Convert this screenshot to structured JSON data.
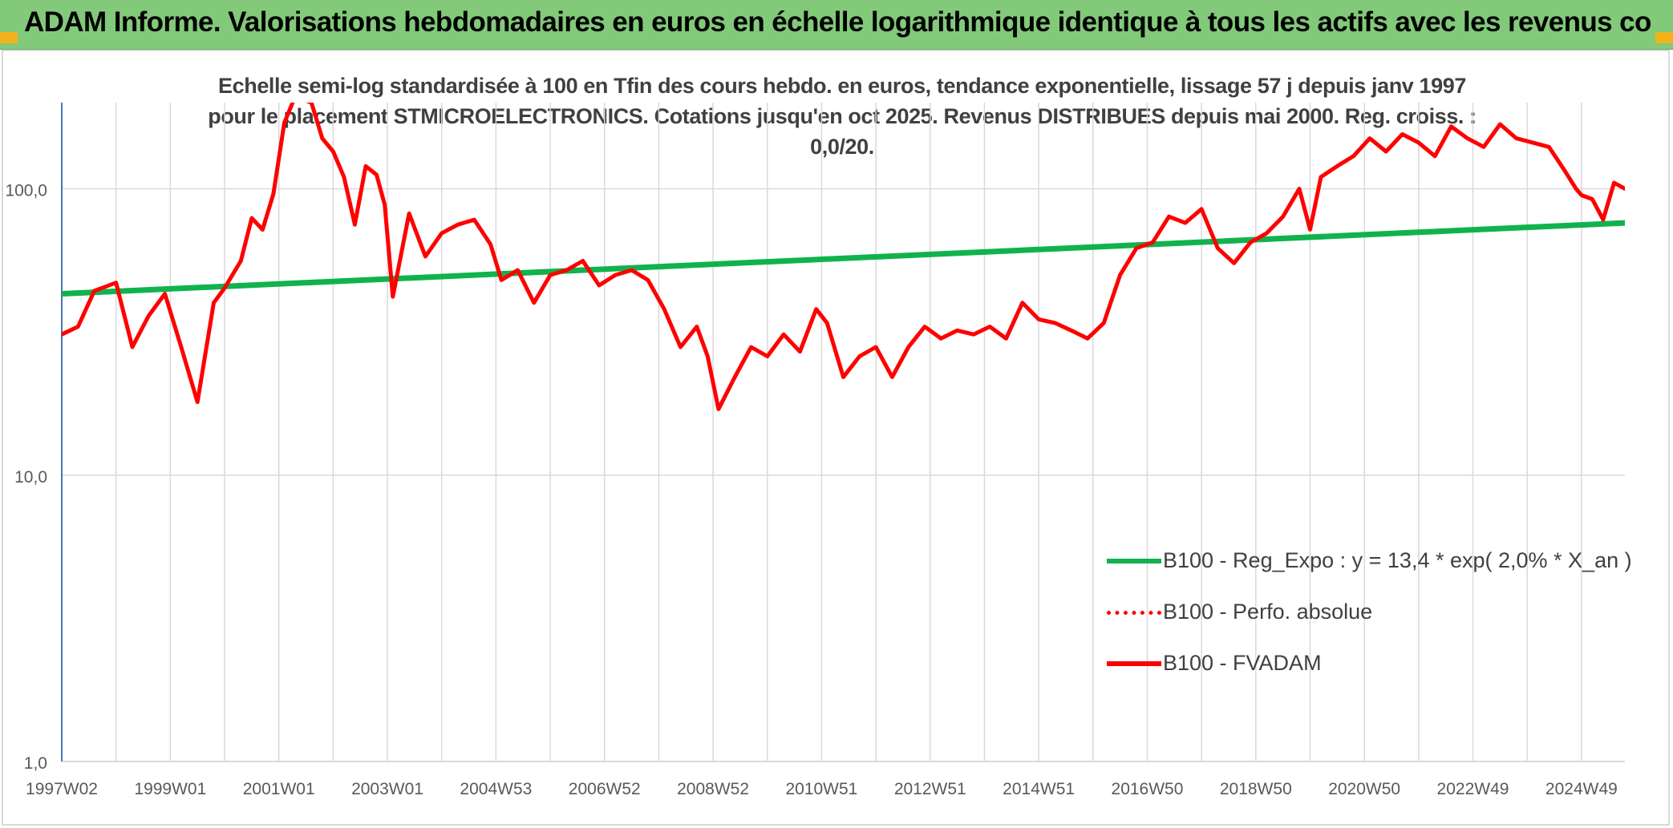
{
  "header": {
    "title": "ADAM Informe. Valorisations hebdomadaires en euros en échelle logarithmique identique à tous les actifs avec les revenus connus distribués"
  },
  "colors": {
    "banner": "#82c97a",
    "accent_corner": "#f2b21b",
    "fvadam": "#ff0000",
    "reg_expo": "#11b24e",
    "perfo": "#ff0000",
    "grid": "#d9d9d9"
  },
  "chart_data": {
    "type": "line",
    "title": "Echelle semi-log standardisée à 100 en Tfin des cours hebdo. en euros, tendance exponentielle, lissage 57 j depuis janv 1997 pour le placement STMICROELECTRONICS. Cotations jusqu'en oct 2025. Revenus DISTRIBUES depuis mai 2000. Reg. croiss. : 0,0/20.",
    "yscale": "log",
    "ylim": [
      1,
      200
    ],
    "xlim": [
      1997.0,
      2025.8
    ],
    "yticks": [
      {
        "value": 1,
        "label": "1,0"
      },
      {
        "value": 10,
        "label": "10,0"
      },
      {
        "value": 100,
        "label": "100,0"
      }
    ],
    "xticks": [
      {
        "value": 1997.0,
        "label": "1997W02"
      },
      {
        "value": 1999.0,
        "label": "1999W01"
      },
      {
        "value": 2001.0,
        "label": "2001W01"
      },
      {
        "value": 2003.0,
        "label": "2003W01"
      },
      {
        "value": 2005.0,
        "label": "2004W53"
      },
      {
        "value": 2007.0,
        "label": "2006W52"
      },
      {
        "value": 2009.0,
        "label": "2008W52"
      },
      {
        "value": 2011.0,
        "label": "2010W51"
      },
      {
        "value": 2013.0,
        "label": "2012W51"
      },
      {
        "value": 2015.0,
        "label": "2014W51"
      },
      {
        "value": 2017.0,
        "label": "2016W50"
      },
      {
        "value": 2019.0,
        "label": "2018W50"
      },
      {
        "value": 2021.0,
        "label": "2020W50"
      },
      {
        "value": 2023.0,
        "label": "2022W49"
      },
      {
        "value": 2025.0,
        "label": "2024W49"
      }
    ],
    "legend": {
      "position": "bottom-right",
      "entries": [
        {
          "name": "B100 - Reg_Expo : y = 13,4 * exp( 2,0% *  X_an )",
          "style": "solid",
          "color": "#11b24e"
        },
        {
          "name": "B100 - Perfo. absolue",
          "style": "dotted",
          "color": "#ff0000"
        },
        {
          "name": "B100 - FVADAM",
          "style": "solid",
          "color": "#ff0000"
        }
      ]
    },
    "series": [
      {
        "name": "B100 - Reg_Expo : y = 13,4 * exp( 2,0% *  X_an )",
        "color": "#11b24e",
        "x": [
          1997.0,
          2025.8
        ],
        "y": [
          43,
          76
        ]
      },
      {
        "name": "B100 - FVADAM",
        "color": "#ff0000",
        "x": [
          1997.0,
          1997.3,
          1997.6,
          1998.0,
          1998.3,
          1998.6,
          1998.9,
          1999.2,
          1999.5,
          1999.8,
          2000.0,
          2000.3,
          2000.5,
          2000.7,
          2000.9,
          2001.1,
          2001.3,
          2001.6,
          2001.8,
          2002.0,
          2002.2,
          2002.4,
          2002.6,
          2002.8,
          2002.95,
          2003.1,
          2003.4,
          2003.7,
          2004.0,
          2004.3,
          2004.6,
          2004.9,
          2005.1,
          2005.4,
          2005.7,
          2006.0,
          2006.3,
          2006.6,
          2006.9,
          2007.2,
          2007.5,
          2007.8,
          2008.1,
          2008.4,
          2008.7,
          2008.9,
          2009.1,
          2009.4,
          2009.7,
          2010.0,
          2010.3,
          2010.6,
          2010.9,
          2011.1,
          2011.4,
          2011.7,
          2012.0,
          2012.3,
          2012.6,
          2012.9,
          2013.2,
          2013.5,
          2013.8,
          2014.1,
          2014.4,
          2014.7,
          2015.0,
          2015.3,
          2015.6,
          2015.9,
          2016.2,
          2016.5,
          2016.8,
          2017.1,
          2017.4,
          2017.7,
          2018.0,
          2018.3,
          2018.6,
          2018.9,
          2019.2,
          2019.5,
          2019.8,
          2020.0,
          2020.2,
          2020.5,
          2020.8,
          2021.1,
          2021.4,
          2021.7,
          2022.0,
          2022.3,
          2022.6,
          2022.9,
          2023.2,
          2023.5,
          2023.8,
          2024.1,
          2024.4,
          2024.7,
          2024.9,
          2025.0,
          2025.2,
          2025.4,
          2025.6,
          2025.8
        ],
        "y": [
          31,
          33,
          44,
          47,
          28,
          36,
          43,
          28,
          18,
          40,
          45,
          56,
          79,
          72,
          96,
          170,
          210,
          200,
          150,
          135,
          110,
          75,
          120,
          112,
          88,
          42,
          82,
          58,
          70,
          75,
          78,
          64,
          48,
          52,
          40,
          50,
          52,
          56,
          46,
          50,
          52,
          48,
          38,
          28,
          33,
          26,
          17,
          22,
          28,
          26,
          31,
          27,
          38,
          34,
          22,
          26,
          28,
          22,
          28,
          33,
          30,
          32,
          31,
          33,
          30,
          40,
          35,
          34,
          32,
          30,
          34,
          50,
          62,
          65,
          80,
          76,
          85,
          62,
          55,
          65,
          70,
          80,
          100,
          72,
          110,
          120,
          130,
          150,
          135,
          155,
          145,
          130,
          165,
          150,
          140,
          168,
          150,
          145,
          140,
          115,
          100,
          95,
          92,
          78,
          105,
          100
        ]
      }
    ]
  }
}
